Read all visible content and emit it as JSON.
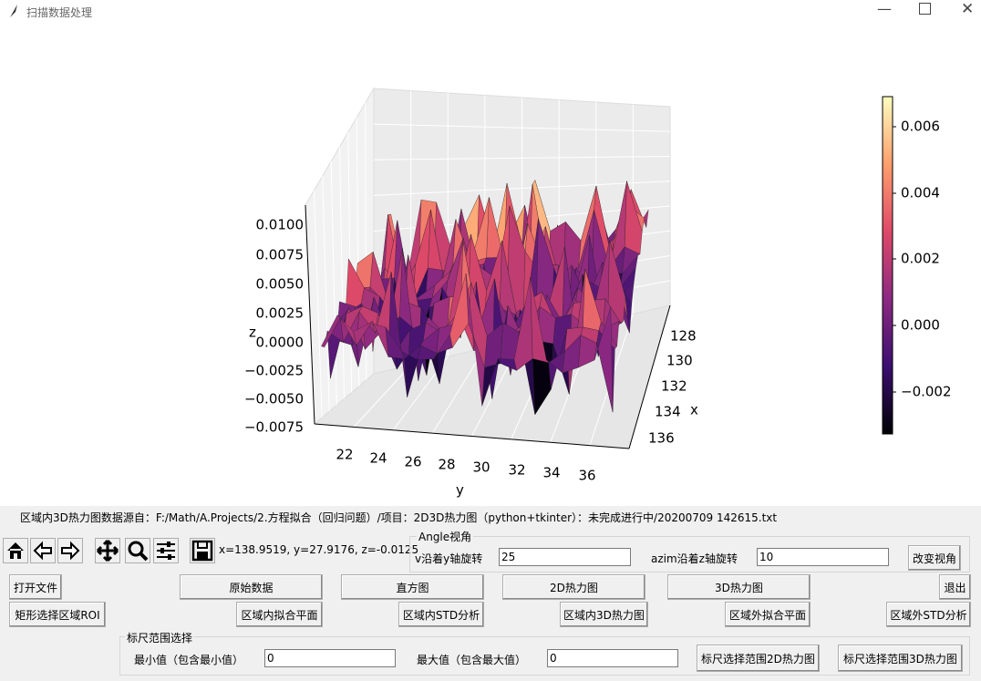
{
  "window": {
    "title": "扫描数据处理"
  },
  "plot": {
    "z_label": "z",
    "x_label": "x",
    "y_label": "y",
    "z_ticks": [
      "0.0100",
      "0.0075",
      "0.0050",
      "0.0025",
      "0.0000",
      "−0.0025",
      "−0.0050",
      "−0.0075"
    ],
    "x_ticks": [
      "128",
      "130",
      "132",
      "134",
      "136"
    ],
    "y_ticks": [
      "22",
      "24",
      "26",
      "28",
      "30",
      "32",
      "34",
      "36"
    ],
    "colorbar_ticks": [
      "0.006",
      "0.004",
      "0.002",
      "0.000",
      "−0.002"
    ]
  },
  "source_label": "区域内3D热力图数据源自：F:/Math/A.Projects/2.方程拟合（回归问题）/项目：2D3D热力图（python+tkinter）：未完成进行中/20200709 142615.txt",
  "toolbar": {
    "coords": "x=138.9519, y=27.9176, z=-0.0125"
  },
  "angle": {
    "title": "Angle视角",
    "elev_label": "v沿着y轴旋转",
    "elev_value": "25",
    "azim_label": "azim沿着z轴旋转",
    "azim_value": "10",
    "button": "改变视角"
  },
  "buttons": {
    "row1": [
      "打开文件",
      "原始数据",
      "直方图",
      "2D热力图",
      "3D热力图",
      "退出"
    ],
    "row2": [
      "矩形选择区域ROI",
      "区域内拟合平面",
      "区域内STD分析",
      "区域内3D热力图",
      "区域外拟合平面",
      "区域外STD分析"
    ]
  },
  "range": {
    "title": "标尺范围选择",
    "min_label": "最小值（包含最小值）",
    "min_value": "0",
    "max_label": "最大值（包含最大值）",
    "max_value": "0",
    "button_2d": "标尺选择范围2D热力图",
    "button_3d": "标尺选择范围3D热力图"
  }
}
